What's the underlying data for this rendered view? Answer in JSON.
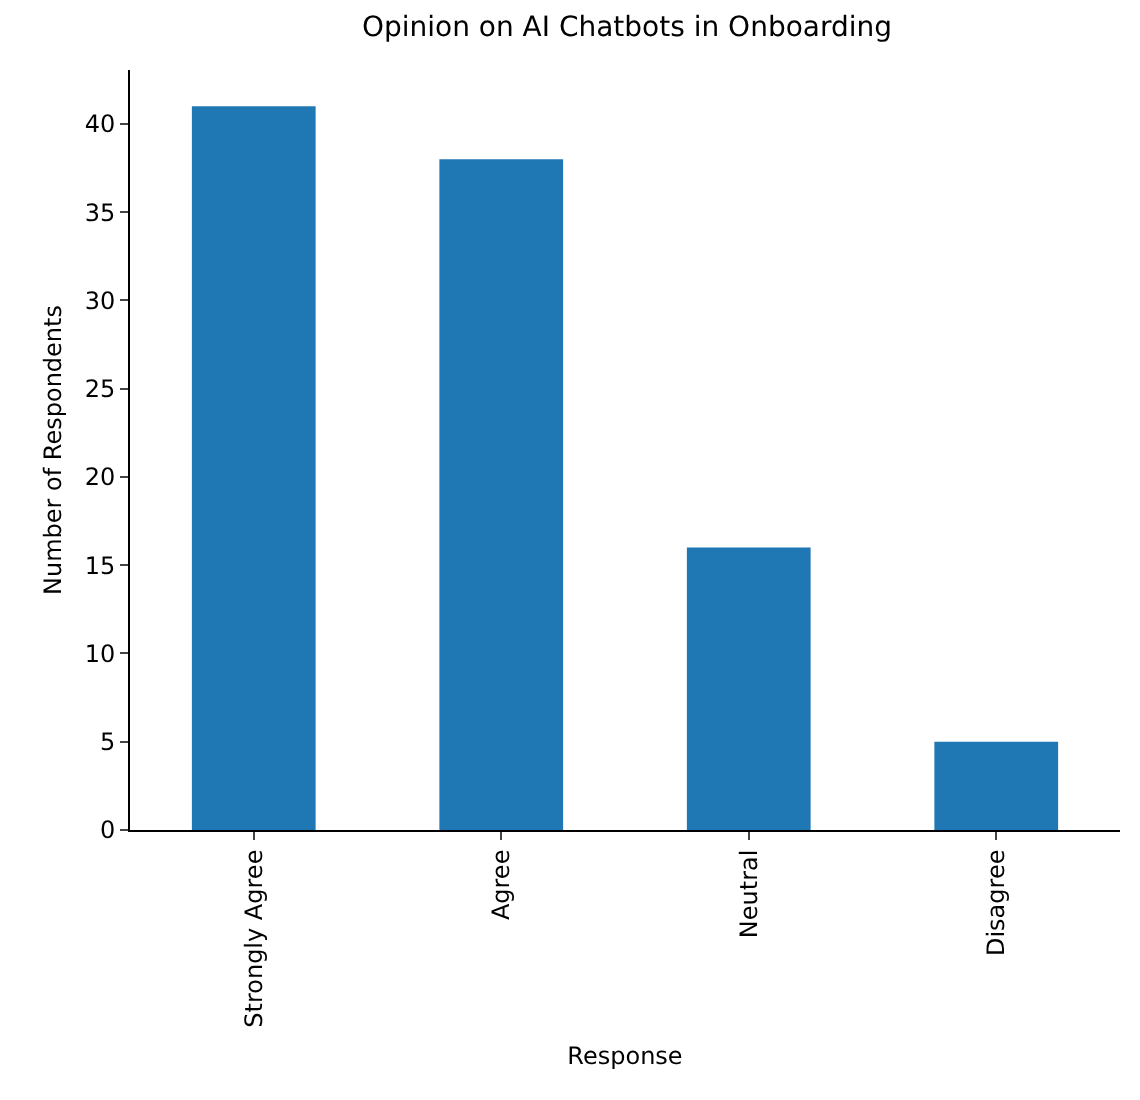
{
  "chart_data": {
    "type": "bar",
    "title": "Opinion on AI Chatbots in Onboarding",
    "xlabel": "Response",
    "ylabel": "Number of Respondents",
    "categories": [
      "Strongly Agree",
      "Agree",
      "Neutral",
      "Disagree"
    ],
    "values": [
      41,
      38,
      16,
      5
    ],
    "color": "#1f77b4",
    "ylim": [
      0,
      43.05
    ],
    "yticks": [
      0,
      5,
      10,
      15,
      20,
      25,
      30,
      35,
      40
    ],
    "grid": false
  }
}
